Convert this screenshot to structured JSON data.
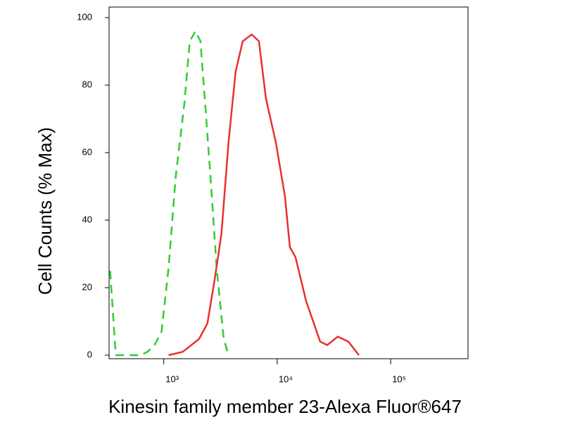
{
  "chart_data": {
    "type": "line",
    "y_label": "Cell Counts (% Max)",
    "x_label": "Kinesin family member 23-Alexa Fluor®647",
    "x_log": true,
    "xlim": [
      330,
      480000
    ],
    "xticks": [
      {
        "value": 1000,
        "label": "10³"
      },
      {
        "value": 10000,
        "label": "10⁴"
      },
      {
        "value": 100000,
        "label": "10⁵"
      }
    ],
    "ylim": [
      0,
      100
    ],
    "yticks": [
      0,
      20,
      40,
      60,
      80,
      100
    ],
    "series": [
      {
        "color": "#33cc33",
        "line_style": "dashed",
        "x": [
          337,
          378,
          624,
          719,
          830,
          958,
          1105,
          1275,
          1514,
          1698,
          1905,
          2105,
          2325,
          2606,
          2923,
          3374,
          3724
        ],
        "values": [
          25,
          0,
          0,
          1,
          3,
          7,
          26,
          53,
          74,
          93,
          96,
          93,
          74,
          51,
          26,
          5,
          0
        ]
      },
      {
        "color": "#e8312f",
        "line_style": "solid",
        "x": [
          1105,
          1472,
          2046,
          2427,
          2800,
          3228,
          3724,
          4301,
          4966,
          5975,
          6902,
          7962,
          9727,
          11700,
          12940,
          14500,
          17980,
          23930,
          27600,
          34200,
          42400,
          52500
        ],
        "values": [
          0,
          1,
          4.8,
          9.4,
          22,
          36,
          63,
          84,
          93,
          95,
          93,
          76,
          63,
          47,
          32,
          29,
          16,
          4,
          3,
          5.5,
          4,
          0
        ]
      }
    ]
  }
}
